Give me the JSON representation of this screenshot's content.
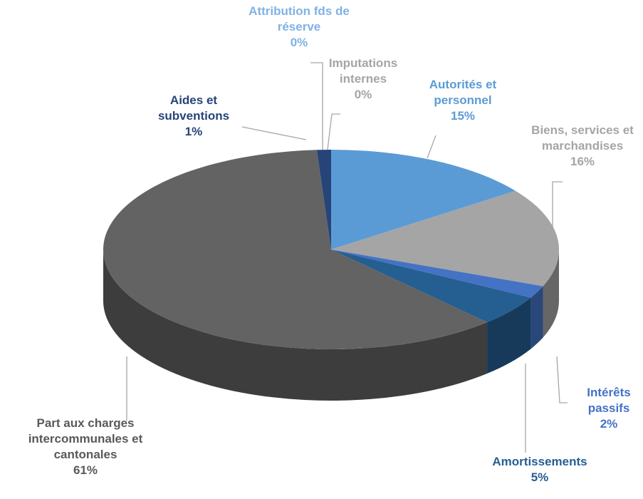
{
  "chart_data": {
    "type": "pie",
    "categories": [
      "Autorités et personnel",
      "Biens, services et marchandises",
      "Intérêts passifs",
      "Amortissements",
      "Part aux charges intercommunales et cantonales",
      "Aides et subventions",
      "Attribution fds de réserve",
      "Imputations internes"
    ],
    "values": [
      15,
      16,
      2,
      5,
      61,
      1,
      0,
      0
    ],
    "value_labels": [
      "15%",
      "16%",
      "2%",
      "5%",
      "61%",
      "1%",
      "0%",
      "0%"
    ],
    "colors": [
      "#5b9bd5",
      "#a5a5a5",
      "#4472c4",
      "#255e91",
      "#636363",
      "#264478",
      "#9dc3e6",
      "#c9c9c9"
    ],
    "label_colors": [
      "#5b9bd5",
      "#a5a5a5",
      "#4472c4",
      "#255e91",
      "#595959",
      "#264478",
      "#7fb2e5",
      "#a5a5a5"
    ]
  }
}
